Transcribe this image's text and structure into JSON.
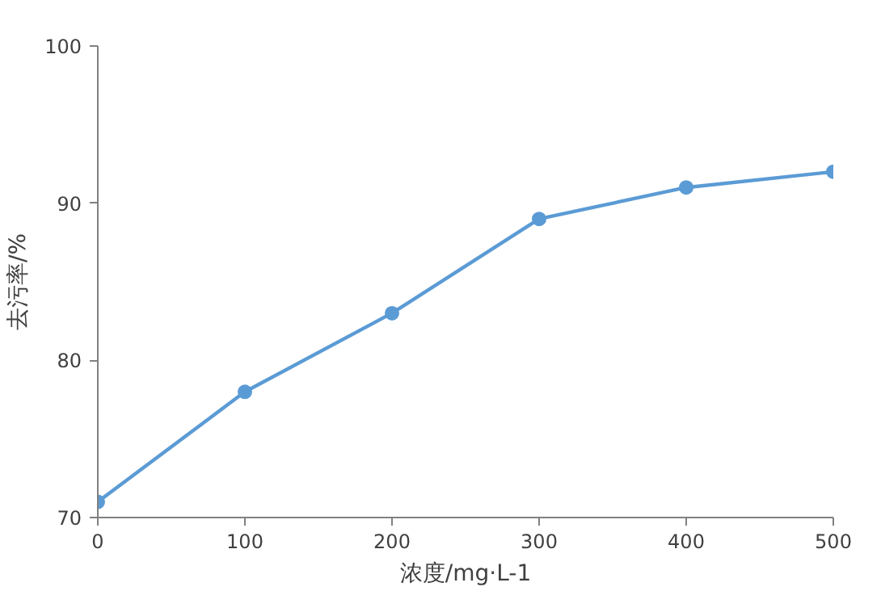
{
  "chart_data": {
    "type": "line",
    "xlabel": "浓度/mg·L-1",
    "ylabel": "去污率/%",
    "x": [
      0,
      100,
      200,
      300,
      400,
      500
    ],
    "series": [
      {
        "color": "#5b9bd5",
        "values": [
          71,
          78,
          83,
          89,
          91,
          92
        ]
      }
    ],
    "xlim": [
      0,
      500
    ],
    "ylim": [
      70,
      100
    ],
    "xticks": [
      0,
      100,
      200,
      300,
      400,
      500
    ],
    "yticks": [
      70,
      80,
      90,
      100
    ],
    "grid": false,
    "marker": "circle",
    "line_style": "solid"
  }
}
